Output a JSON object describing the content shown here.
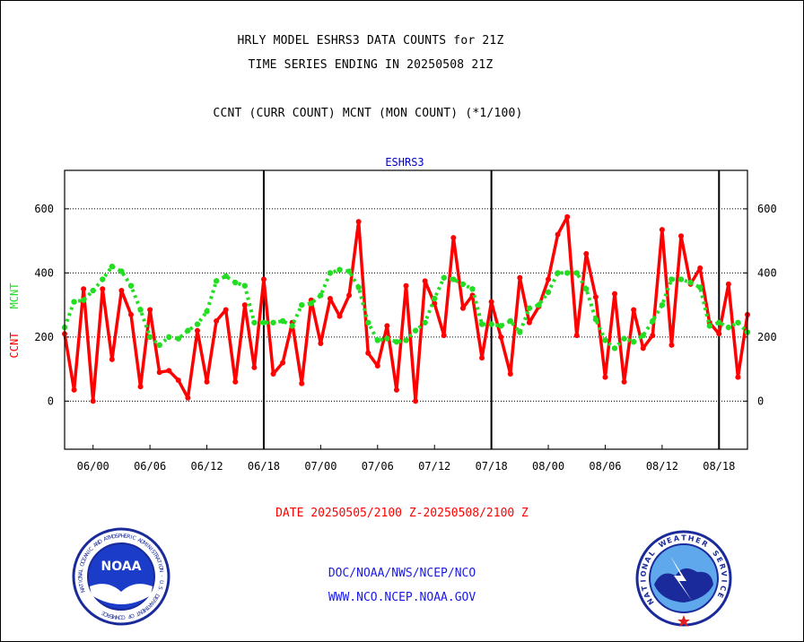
{
  "header": {
    "line1": "HRLY MODEL ESHRS3 DATA COUNTS for 21Z",
    "line2": "TIME SERIES ENDING IN 20250508 21Z",
    "line3": "CCNT (CURR COUNT) MCNT (MON COUNT) (*1/100)"
  },
  "footer": {
    "date_range": "DATE 20250505/2100 Z-20250508/2100 Z",
    "credit_line1": "DOC/NOAA/NWS/NCEP/NCO",
    "credit_line2": "WWW.NCO.NCEP.NOAA.GOV"
  },
  "logos": {
    "left": {
      "name": "noaa-logo",
      "text": "NOAA",
      "ring": "NATIONAL OCEANIC AND ATMOSPHERIC ADMINISTRATION · U.S. DEPARTMENT OF COMMERCE"
    },
    "right": {
      "name": "nws-logo",
      "ring": "NATIONAL WEATHER SERVICE"
    }
  },
  "chart_data": {
    "type": "line",
    "title": "ESHRS3",
    "ylabel_ccnt": "CCNT",
    "ylabel_mcnt": "MCNT",
    "ylim": [
      -150,
      720
    ],
    "yticks": [
      0,
      200,
      400,
      600
    ],
    "x_start_hour": -21,
    "x_end_hour": 51,
    "x_tick_labels": [
      {
        "label": "06/00",
        "hour": -18
      },
      {
        "label": "06/06",
        "hour": -12
      },
      {
        "label": "06/12",
        "hour": -6
      },
      {
        "label": "06/18",
        "hour": 0
      },
      {
        "label": "07/00",
        "hour": 6
      },
      {
        "label": "07/06",
        "hour": 12
      },
      {
        "label": "07/12",
        "hour": 18
      },
      {
        "label": "07/18",
        "hour": 24
      },
      {
        "label": "08/00",
        "hour": 30
      },
      {
        "label": "08/06",
        "hour": 36
      },
      {
        "label": "08/12",
        "hour": 42
      },
      {
        "label": "08/18",
        "hour": 48
      }
    ],
    "day_boundaries": [
      0,
      24,
      48
    ],
    "grid": true,
    "colors": {
      "ccnt": "#ff0000",
      "mcnt": "#22dd22",
      "title": "#0000cc",
      "axis": "#000000"
    },
    "series": [
      {
        "name": "CCNT",
        "color": "#ff0000",
        "values": [
          210,
          35,
          350,
          0,
          350,
          130,
          345,
          270,
          45,
          285,
          90,
          95,
          65,
          10,
          220,
          60,
          250,
          285,
          60,
          300,
          105,
          380,
          85,
          120,
          245,
          55,
          315,
          180,
          320,
          265,
          330,
          560,
          150,
          110,
          235,
          35,
          360,
          0,
          375,
          305,
          205,
          510,
          290,
          330,
          135,
          310,
          200,
          85,
          385,
          245,
          295,
          380,
          520,
          575,
          205,
          460,
          325,
          75,
          335,
          60,
          285,
          165,
          205,
          535,
          175,
          515,
          365,
          415,
          245,
          210,
          365,
          75,
          270
        ]
      },
      {
        "name": "MCNT",
        "color": "#22dd22",
        "values": [
          230,
          310,
          315,
          345,
          380,
          420,
          405,
          360,
          285,
          200,
          175,
          200,
          195,
          220,
          240,
          280,
          375,
          390,
          370,
          360,
          245,
          245,
          245,
          250,
          235,
          300,
          305,
          330,
          400,
          410,
          405,
          355,
          245,
          190,
          195,
          185,
          190,
          220,
          245,
          320,
          385,
          380,
          365,
          350,
          240,
          240,
          235,
          250,
          215,
          290,
          300,
          340,
          400,
          400,
          400,
          350,
          255,
          190,
          165,
          195,
          185,
          205,
          250,
          300,
          380,
          380,
          370,
          355,
          235,
          245,
          230,
          245,
          215
        ]
      }
    ]
  }
}
